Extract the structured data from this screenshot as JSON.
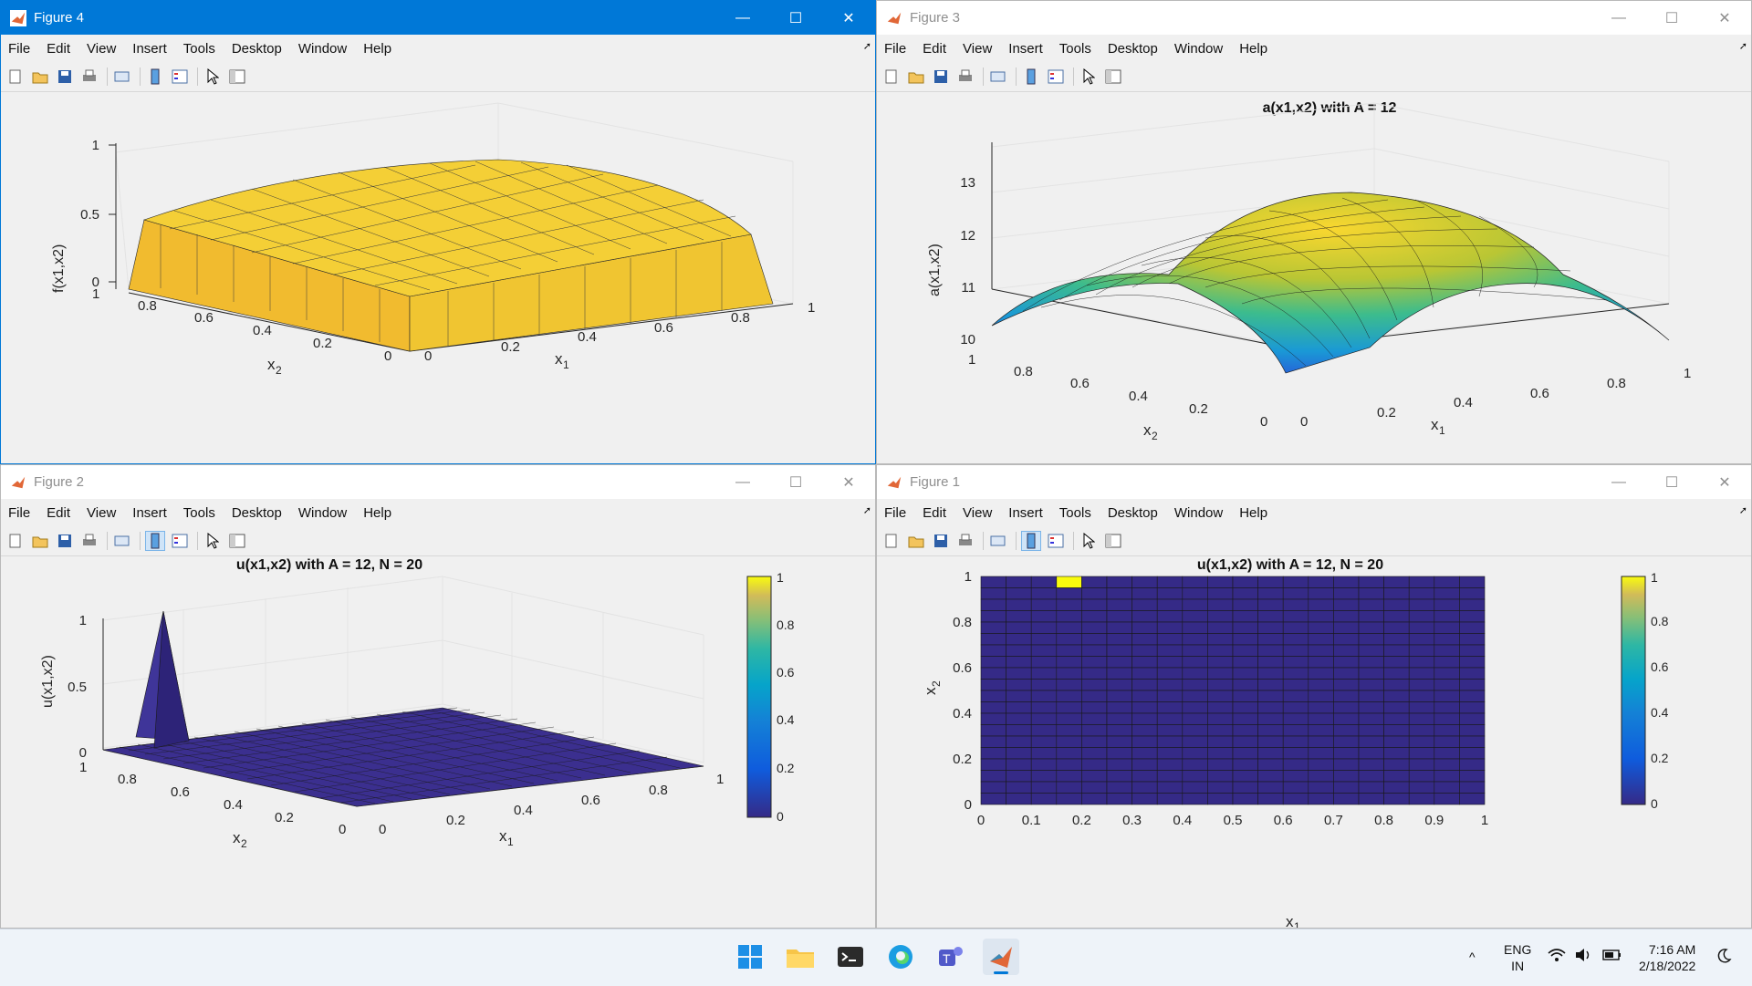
{
  "menu": [
    "File",
    "Edit",
    "View",
    "Insert",
    "Tools",
    "Desktop",
    "Window",
    "Help"
  ],
  "figures": [
    {
      "title": "Figure 4",
      "xlabel": "x",
      "xlabel_sub": "1",
      "ylabel": "x",
      "ylabel_sub": "2",
      "zlabel": "f(x1,x2)",
      "zticks": [
        "0",
        "0.5",
        "1"
      ],
      "xticks": [
        "0",
        "0.2",
        "0.4",
        "0.6",
        "0.8",
        "1"
      ],
      "yticks": [
        "0",
        "0.2",
        "0.4",
        "0.6",
        "0.8",
        "1"
      ]
    },
    {
      "title": "Figure 3",
      "plot_title": "a(x1,x2) with A = 12",
      "xlabel": "x",
      "xlabel_sub": "1",
      "ylabel": "x",
      "ylabel_sub": "2",
      "zlabel": "a(x1,x2)",
      "zticks": [
        "10",
        "11",
        "12",
        "13"
      ],
      "xticks": [
        "0",
        "0.2",
        "0.4",
        "0.6",
        "0.8",
        "1"
      ],
      "yticks": [
        "0",
        "0.2",
        "0.4",
        "0.6",
        "0.8",
        "1"
      ]
    },
    {
      "title": "Figure 2",
      "plot_title": "u(x1,x2) with A = 12, N = 20",
      "xlabel": "x",
      "xlabel_sub": "1",
      "ylabel": "x",
      "ylabel_sub": "2",
      "zlabel": "u(x1,x2)",
      "zticks": [
        "0",
        "0.5",
        "1"
      ],
      "xticks": [
        "0",
        "0.2",
        "0.4",
        "0.6",
        "0.8",
        "1"
      ],
      "yticks": [
        "0",
        "0.2",
        "0.4",
        "0.6",
        "0.8",
        "1"
      ],
      "cbticks": [
        "0",
        "0.2",
        "0.4",
        "0.6",
        "0.8",
        "1"
      ]
    },
    {
      "title": "Figure 1",
      "plot_title": "u(x1,x2) with A = 12, N = 20",
      "xlabel": "x",
      "xlabel_sub": "1",
      "ylabel": "x",
      "ylabel_sub": "2",
      "xticks": [
        "0",
        "0.1",
        "0.2",
        "0.3",
        "0.4",
        "0.5",
        "0.6",
        "0.7",
        "0.8",
        "0.9",
        "1"
      ],
      "yticks": [
        "0",
        "0.2",
        "0.4",
        "0.6",
        "0.8",
        "1"
      ],
      "cbticks": [
        "0",
        "0.2",
        "0.4",
        "0.6",
        "0.8",
        "1"
      ]
    }
  ],
  "tray": {
    "lang1": "ENG",
    "lang2": "IN",
    "time": "7:16 AM",
    "date": "2/18/2022"
  },
  "colors": {
    "accent": "#0078d7",
    "parula_low": "#352a87",
    "parula_high": "#f9fb0e"
  }
}
